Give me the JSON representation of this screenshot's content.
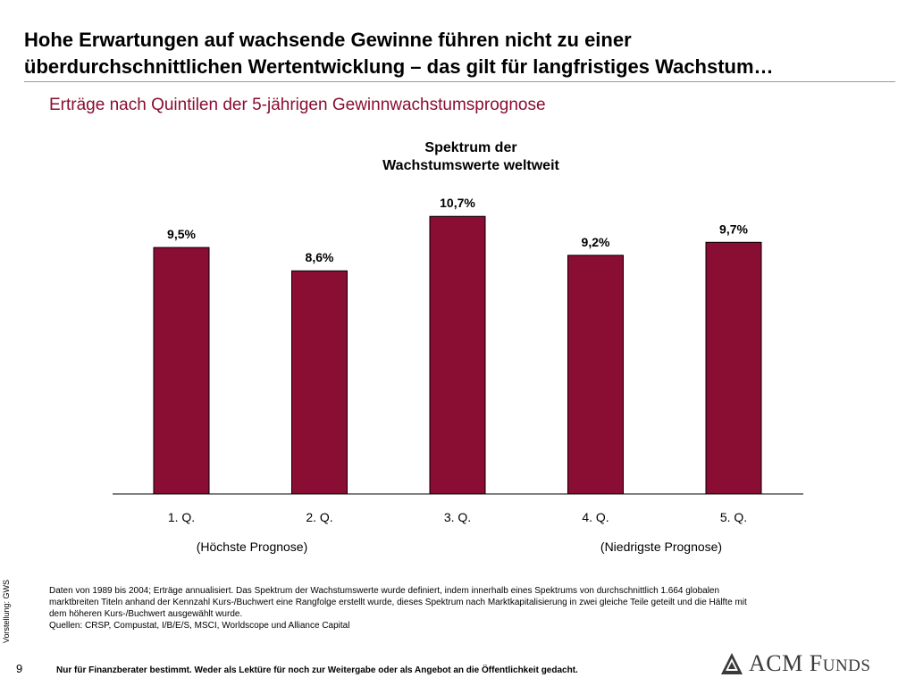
{
  "title": {
    "line1": "Hohe Erwartungen auf wachsende Gewinne führen nicht zu einer",
    "line2": "überdurchschnittlichen Wertentwicklung – das gilt für langfristiges Wachstum…"
  },
  "subtitle": "Erträge nach Quintilen der 5-jährigen Gewinnwachstumsprognose",
  "chart_data": {
    "type": "bar",
    "title_line1": "Spektrum der",
    "title_line2": "Wachstumswerte weltweit",
    "categories": [
      "1. Q.",
      "2. Q.",
      "3. Q.",
      "4. Q.",
      "5. Q."
    ],
    "values": [
      9.5,
      8.6,
      10.7,
      9.2,
      9.7
    ],
    "value_labels": [
      "9,5%",
      "8,6%",
      "10,7%",
      "9,2%",
      "9,7%"
    ],
    "ylim": [
      0,
      11.5
    ],
    "grid": false,
    "bar_color": "#8a0d33",
    "group_labels": {
      "left": "(Höchste Prognose)",
      "right": "(Niedrigste Prognose)"
    }
  },
  "side_note": "Vorstellung: GWS",
  "footnote": {
    "line1": "Daten von 1989 bis 2004; Erträge annualisiert. Das Spektrum der Wachstumswerte wurde definiert, indem innerhalb eines Spektrums von durchschnittlich 1.664 globalen",
    "line2": "marktbreiten Titeln anhand der Kennzahl Kurs-/Buchwert eine Rangfolge erstellt wurde, dieses Spektrum nach Marktkapitalisierung in zwei gleiche Teile geteilt und die Hälfte mit",
    "line3": "dem höheren Kurs-/Buchwert ausgewählt wurde.",
    "line4": "Quellen: CRSP, Compustat, I/B/E/S, MSCI, Worldscope und Alliance Capital"
  },
  "page_number": "9",
  "disclaimer": "Nur für Finanzberater bestimmt. Weder als Lektüre für noch zur Weitergabe oder als Angebot an die Öffentlichkeit gedacht.",
  "logo": {
    "word1": "ACM",
    "word2_initial": "F",
    "word2_rest": "UNDS",
    "icon": "acm-mountain-logo-icon"
  }
}
